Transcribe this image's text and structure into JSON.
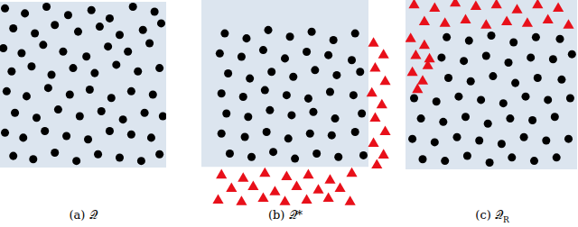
{
  "chart_data": [
    {
      "type": "scatter",
      "title": "(a) 𝒬",
      "tick_labels": false,
      "xlim": [
        0,
        1
      ],
      "ylim": [
        0,
        1
      ],
      "shaded_region": {
        "x": [
          0,
          1
        ],
        "y": [
          0,
          1
        ],
        "color": "#dce5ef"
      },
      "series": [
        {
          "color": "#000000",
          "marker": "circle",
          "x": [
            0.03,
            0.15,
            0.28,
            0.41,
            0.55,
            0.66,
            0.8,
            0.93,
            0.08,
            0.21,
            0.33,
            0.47,
            0.6,
            0.72,
            0.86,
            0.97,
            0.02,
            0.13,
            0.26,
            0.38,
            0.52,
            0.65,
            0.77,
            0.9,
            0.07,
            0.19,
            0.31,
            0.44,
            0.57,
            0.7,
            0.83,
            0.96,
            0.04,
            0.16,
            0.29,
            0.42,
            0.54,
            0.67,
            0.79,
            0.92,
            0.09,
            0.22,
            0.35,
            0.48,
            0.61,
            0.74,
            0.87,
            0.98,
            0.03,
            0.14,
            0.27,
            0.4,
            0.53,
            0.66,
            0.79,
            0.91,
            0.08,
            0.2,
            0.33,
            0.46,
            0.59,
            0.72,
            0.85,
            0.96
          ],
          "values": [
            0.96,
            0.93,
            0.97,
            0.92,
            0.95,
            0.9,
            0.97,
            0.94,
            0.84,
            0.81,
            0.86,
            0.82,
            0.85,
            0.8,
            0.83,
            0.87,
            0.72,
            0.69,
            0.74,
            0.7,
            0.67,
            0.73,
            0.7,
            0.75,
            0.58,
            0.61,
            0.56,
            0.6,
            0.57,
            0.62,
            0.58,
            0.6,
            0.46,
            0.43,
            0.48,
            0.44,
            0.47,
            0.42,
            0.46,
            0.44,
            0.33,
            0.3,
            0.35,
            0.31,
            0.34,
            0.29,
            0.33,
            0.31,
            0.21,
            0.18,
            0.22,
            0.19,
            0.17,
            0.22,
            0.2,
            0.18,
            0.07,
            0.05,
            0.09,
            0.04,
            0.08,
            0.06,
            0.04,
            0.08
          ]
        }
      ]
    },
    {
      "type": "scatter",
      "title": "(b) 𝒬*",
      "tick_labels": false,
      "xlim": [
        0,
        1.135
      ],
      "ylim": [
        -0.23,
        1
      ],
      "shaded_region": {
        "x": [
          0,
          1
        ],
        "y": [
          0,
          1
        ],
        "color": "#dce5ef"
      },
      "series": [
        {
          "color": "#000000",
          "marker": "circle",
          "x": [
            0.14,
            0.27,
            0.4,
            0.53,
            0.66,
            0.79,
            0.92,
            0.11,
            0.24,
            0.37,
            0.5,
            0.63,
            0.76,
            0.9,
            0.16,
            0.29,
            0.42,
            0.55,
            0.68,
            0.81,
            0.95,
            0.12,
            0.25,
            0.38,
            0.51,
            0.64,
            0.77,
            0.91,
            0.15,
            0.28,
            0.41,
            0.54,
            0.67,
            0.8,
            0.96,
            0.12,
            0.26,
            0.39,
            0.52,
            0.65,
            0.78,
            0.92,
            0.17,
            0.3,
            0.43,
            0.56,
            0.69,
            0.82,
            0.97
          ],
          "values": [
            0.8,
            0.77,
            0.82,
            0.78,
            0.81,
            0.76,
            0.8,
            0.68,
            0.66,
            0.7,
            0.65,
            0.69,
            0.67,
            0.64,
            0.56,
            0.53,
            0.57,
            0.54,
            0.58,
            0.55,
            0.57,
            0.44,
            0.42,
            0.46,
            0.43,
            0.41,
            0.45,
            0.43,
            0.32,
            0.3,
            0.34,
            0.31,
            0.33,
            0.29,
            0.32,
            0.2,
            0.18,
            0.21,
            0.17,
            0.2,
            0.19,
            0.21,
            0.08,
            0.06,
            0.09,
            0.05,
            0.08,
            0.06,
            0.07
          ]
        },
        {
          "color": "#e8101a",
          "marker": "triangle",
          "x": [
            0.12,
            0.25,
            0.38,
            0.51,
            0.64,
            0.77,
            0.9,
            0.18,
            0.31,
            0.44,
            0.57,
            0.7,
            0.83,
            0.1,
            0.24,
            0.37,
            0.5,
            0.63,
            0.76,
            0.89,
            1.03,
            1.09,
            1.04,
            1.1,
            1.02,
            1.08,
            1.04,
            1.1,
            1.03,
            1.09,
            1.05
          ],
          "values": [
            -0.05,
            -0.07,
            -0.04,
            -0.06,
            -0.05,
            -0.08,
            -0.04,
            -0.13,
            -0.12,
            -0.15,
            -0.12,
            -0.14,
            -0.13,
            -0.2,
            -0.21,
            -0.19,
            -0.21,
            -0.2,
            -0.19,
            -0.21,
            0.74,
            0.67,
            0.59,
            0.51,
            0.44,
            0.37,
            0.29,
            0.21,
            0.14,
            0.07,
            0.01
          ]
        }
      ]
    },
    {
      "type": "scatter",
      "title": "(c) 𝒬",
      "title_subscript": "R",
      "tick_labels": false,
      "xlim": [
        0,
        1
      ],
      "ylim": [
        0,
        1
      ],
      "shaded_region": {
        "x": [
          0,
          1
        ],
        "y": [
          0,
          1
        ],
        "color": "#dce5ef"
      },
      "series": [
        {
          "color": "#000000",
          "marker": "circle",
          "x": [
            0.24,
            0.37,
            0.5,
            0.63,
            0.76,
            0.9,
            0.21,
            0.34,
            0.47,
            0.6,
            0.73,
            0.86,
            0.97,
            0.25,
            0.38,
            0.51,
            0.64,
            0.77,
            0.91,
            0.05,
            0.18,
            0.31,
            0.44,
            0.57,
            0.7,
            0.83,
            0.96,
            0.09,
            0.22,
            0.35,
            0.48,
            0.61,
            0.74,
            0.87,
            0.04,
            0.17,
            0.3,
            0.43,
            0.56,
            0.69,
            0.82,
            0.95,
            0.1,
            0.23,
            0.36,
            0.49,
            0.62,
            0.75,
            0.88
          ],
          "values": [
            0.78,
            0.76,
            0.79,
            0.75,
            0.78,
            0.77,
            0.66,
            0.64,
            0.67,
            0.63,
            0.66,
            0.65,
            0.68,
            0.54,
            0.52,
            0.55,
            0.51,
            0.54,
            0.53,
            0.42,
            0.4,
            0.43,
            0.41,
            0.39,
            0.43,
            0.41,
            0.42,
            0.3,
            0.28,
            0.31,
            0.27,
            0.3,
            0.29,
            0.31,
            0.18,
            0.16,
            0.19,
            0.17,
            0.15,
            0.19,
            0.17,
            0.18,
            0.06,
            0.05,
            0.08,
            0.04,
            0.07,
            0.05,
            0.07
          ]
        },
        {
          "color": "#e8101a",
          "marker": "triangle",
          "x": [
            0.05,
            0.17,
            0.29,
            0.41,
            0.53,
            0.65,
            0.77,
            0.89,
            0.11,
            0.23,
            0.35,
            0.47,
            0.59,
            0.71,
            0.83,
            0.95,
            0.03,
            0.11,
            0.06,
            0.13,
            0.04,
            0.1,
            0.07,
            0.14
          ],
          "values": [
            0.97,
            0.95,
            0.98,
            0.96,
            0.97,
            0.94,
            0.97,
            0.95,
            0.87,
            0.86,
            0.88,
            0.85,
            0.87,
            0.86,
            0.88,
            0.85,
            0.77,
            0.73,
            0.67,
            0.61,
            0.57,
            0.52,
            0.47,
            0.65
          ]
        }
      ]
    }
  ]
}
